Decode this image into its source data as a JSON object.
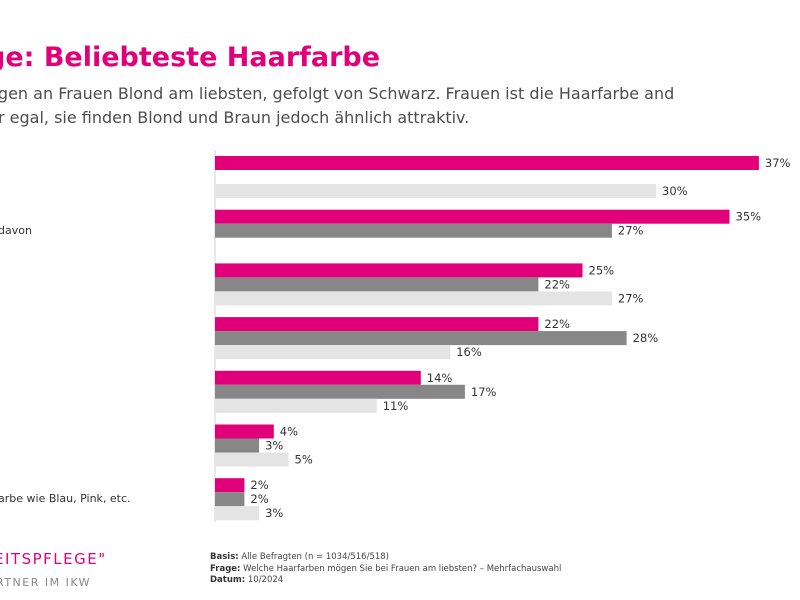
{
  "page": {
    "title": "ge: Beliebteste Haarfarbe",
    "subtitle_line1": "nögen an Frauen Blond am liebsten, gefolgt von Schwarz. Frauen ist die Haarfarbe and",
    "subtitle_line2": "her egal, sie finden Blond und Braun jedoch ähnlich attraktiv."
  },
  "footer": {
    "brand": "EITSPFLEGE\"",
    "partner": "RTNER IM IKW",
    "basis_label": "Basis:",
    "basis_text": "Alle Befragten (n = 1034/516/518)",
    "frage_label": "Frage:",
    "frage_text": "Welche Haarfarben mögen Sie bei Frauen am liebsten? – Mehrfachauswahl",
    "datum_label": "Datum:",
    "datum_text": "10/2024"
  },
  "colors": {
    "series1": "#e2007a",
    "series2": "#878787",
    "series3": "#e4e4e4",
    "axis": "#d0d0d0",
    "label_text": "#333333"
  },
  "chart_data": {
    "type": "bar",
    "orientation": "horizontal",
    "categories": [
      "",
      "davon",
      "",
      "",
      "",
      "",
      "arbe wie Blau, Pink, etc."
    ],
    "series": [
      {
        "name": "",
        "values": [
          37,
          35,
          25,
          22,
          14,
          4,
          2
        ]
      },
      {
        "name": "",
        "values": [
          null,
          27,
          22,
          28,
          17,
          3,
          2
        ]
      },
      {
        "name": "",
        "values": [
          30,
          null,
          27,
          16,
          11,
          5,
          3
        ]
      }
    ],
    "value_labels": [
      [
        "37%",
        "",
        "30%"
      ],
      [
        "35%",
        "27%",
        ""
      ],
      [
        "25%",
        "22%",
        "27%"
      ],
      [
        "22%",
        "28%",
        "16%"
      ],
      [
        "14%",
        "17%",
        "11%"
      ],
      [
        "4%",
        "3%",
        "5%"
      ],
      [
        "2%",
        "2%",
        "3%"
      ]
    ],
    "xlim": [
      0,
      37
    ],
    "unit": "%"
  }
}
